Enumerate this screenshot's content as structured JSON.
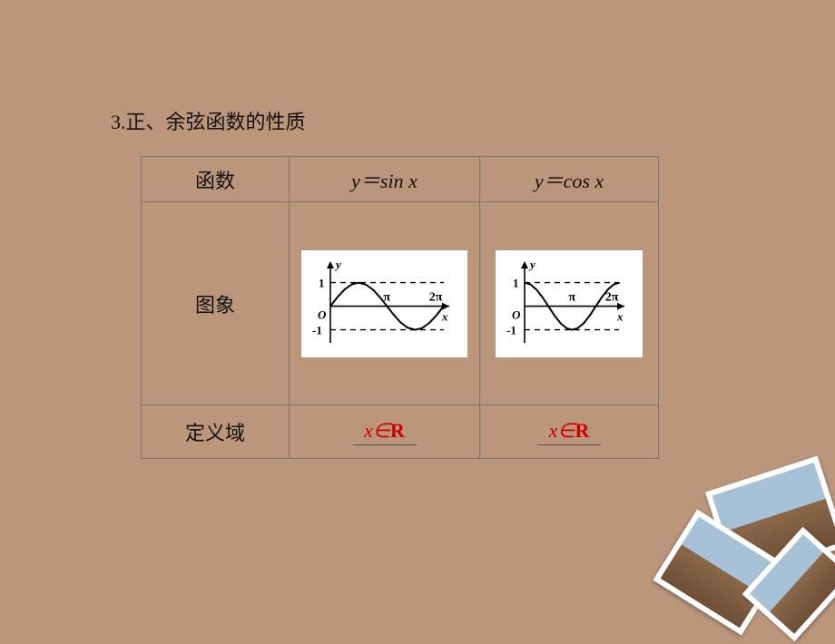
{
  "title": "3.正、余弦函数的性质",
  "table": {
    "border_color": "#777777",
    "header": {
      "label": "函数",
      "sin": "y＝sin x",
      "cos": "y＝cos x"
    },
    "graph_row_label": "图象",
    "domain_row": {
      "label": "定义域",
      "sin": "x∈R",
      "cos": "x∈R",
      "value_color": "#cc0000"
    }
  },
  "sin_graph": {
    "type": "line",
    "xlim": [
      0,
      6.6
    ],
    "ylim": [
      -1.4,
      1.6
    ],
    "axis_color": "#000000",
    "dash_color": "#000000",
    "curve_color": "#000000",
    "labels": {
      "y_axis": "y",
      "x_axis": "x",
      "origin": "O",
      "one": "1",
      "neg_one": "-1",
      "pi": "π",
      "two_pi": "2π"
    },
    "dash_y": [
      1,
      -1
    ],
    "points_x": [
      0,
      0.4,
      0.8,
      1.2,
      1.5708,
      2.0,
      2.4,
      2.8,
      3.1416,
      3.5,
      3.9,
      4.3,
      4.7124,
      5.1,
      5.5,
      5.9,
      6.2832
    ]
  },
  "cos_graph": {
    "type": "line",
    "xlim": [
      0,
      6.6
    ],
    "ylim": [
      -1.4,
      1.6
    ],
    "axis_color": "#000000",
    "dash_color": "#000000",
    "curve_color": "#000000",
    "labels": {
      "y_axis": "y",
      "x_axis": "x",
      "origin": "O",
      "one": "1",
      "neg_one": "-1",
      "pi": "π",
      "two_pi": "2π"
    },
    "dash_y": [
      1,
      -1
    ],
    "points_x": [
      0,
      0.4,
      0.8,
      1.2,
      1.5708,
      2.0,
      2.4,
      2.8,
      3.1416,
      3.5,
      3.9,
      4.3,
      4.7124,
      5.1,
      5.5,
      5.9,
      6.2832
    ]
  },
  "decor": {
    "tilt_deg": [
      -18,
      32,
      -48
    ],
    "frame_color": "#ffffff"
  }
}
